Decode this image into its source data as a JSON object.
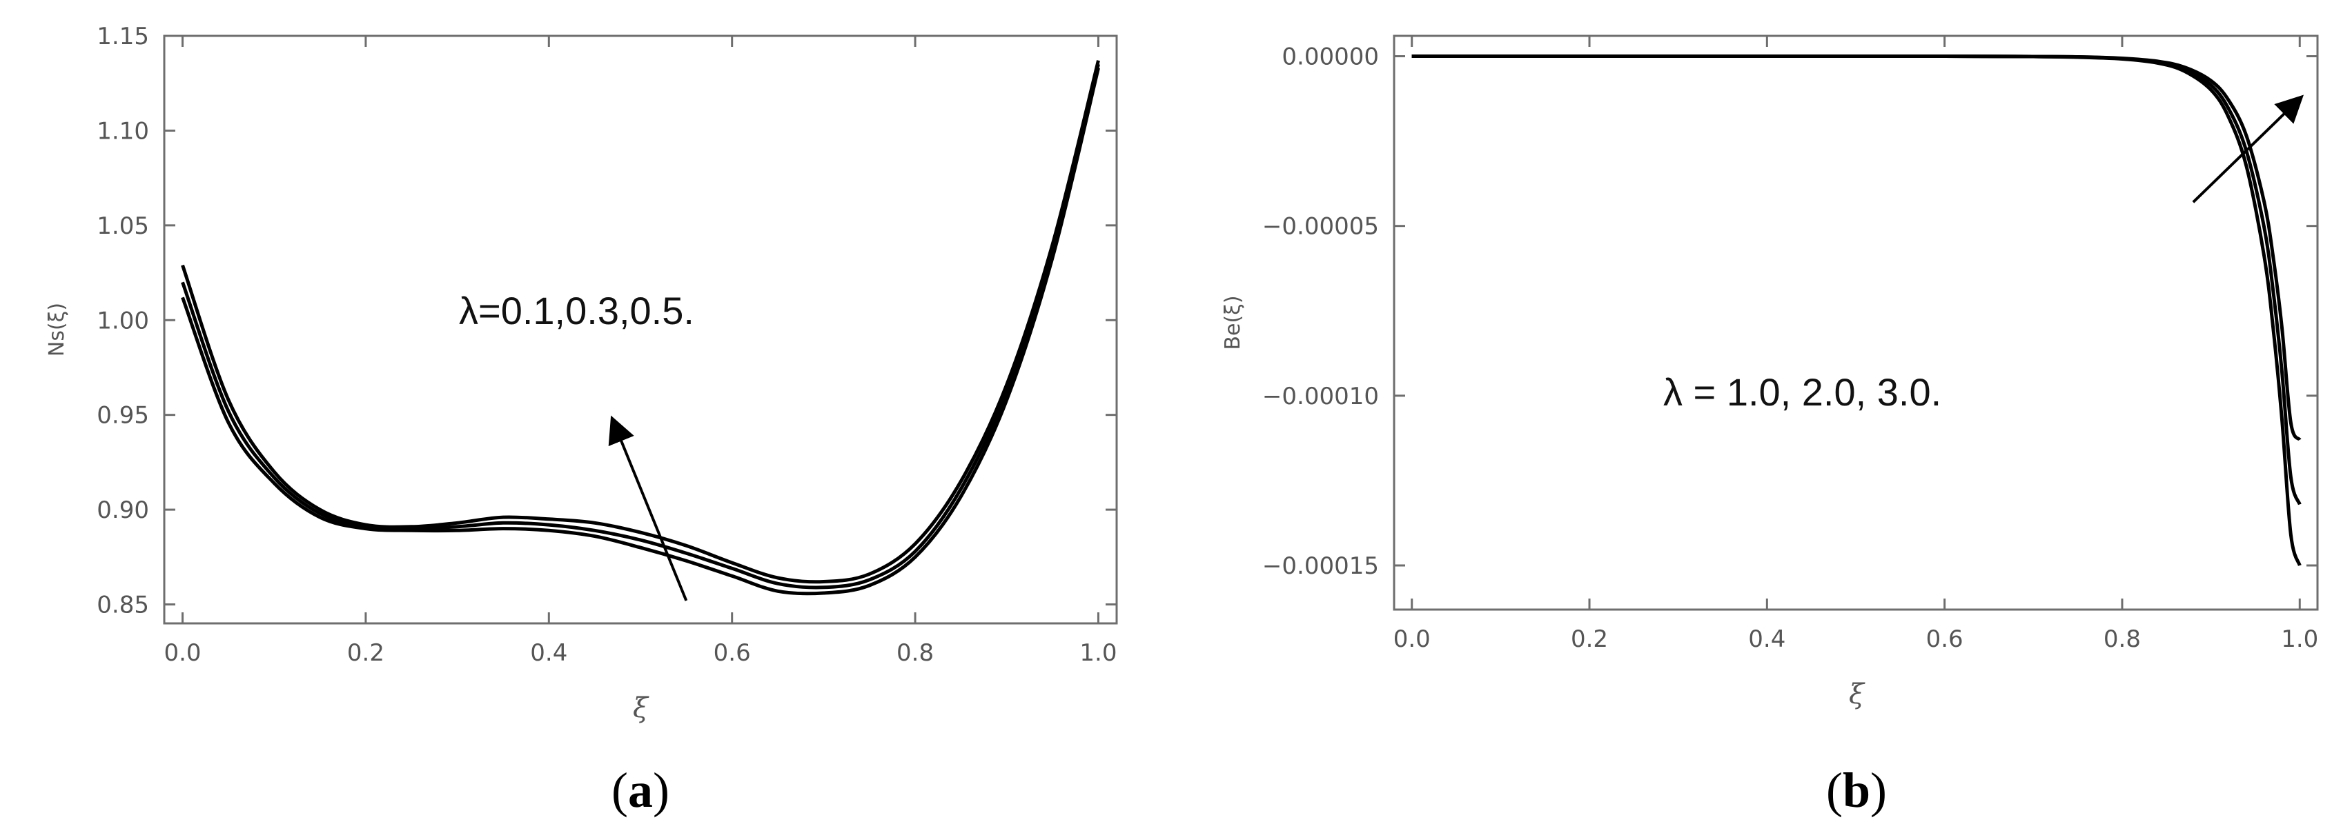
{
  "chart_data": [
    {
      "panel": "(a)",
      "panel_letter": "a",
      "type": "line",
      "xlabel": "ξ",
      "ylabel": "Ns(ξ)",
      "xlim": [
        -0.02,
        1.02
      ],
      "ylim": [
        0.84,
        1.15
      ],
      "xticks": [
        "0.0",
        "0.2",
        "0.4",
        "0.6",
        "0.8",
        "1.0"
      ],
      "xtick_values": [
        0,
        0.2,
        0.4,
        0.6,
        0.8,
        1.0
      ],
      "yticks": [
        "0.85",
        "0.90",
        "0.95",
        "1.00",
        "1.05",
        "1.10",
        "1.15"
      ],
      "ytick_values": [
        0.85,
        0.9,
        0.95,
        1.0,
        1.05,
        1.1,
        1.15
      ],
      "annotation": "λ=0.1,0.3,0.5.",
      "arrow": {
        "from": [
          0.55,
          0.852
        ],
        "to": [
          0.47,
          0.947
        ]
      },
      "x": [
        0.0,
        0.05,
        0.1,
        0.15,
        0.2,
        0.25,
        0.3,
        0.35,
        0.4,
        0.45,
        0.5,
        0.55,
        0.6,
        0.65,
        0.7,
        0.75,
        0.8,
        0.85,
        0.9,
        0.95,
        1.0
      ],
      "series": [
        {
          "values": [
            1.029,
            0.958,
            0.92,
            0.9,
            0.892,
            0.891,
            0.893,
            0.896,
            0.895,
            0.893,
            0.888,
            0.881,
            0.872,
            0.864,
            0.862,
            0.866,
            0.882,
            0.915,
            0.966,
            1.04,
            1.137
          ]
        },
        {
          "values": [
            1.02,
            0.952,
            0.917,
            0.898,
            0.891,
            0.89,
            0.891,
            0.893,
            0.892,
            0.889,
            0.884,
            0.877,
            0.869,
            0.861,
            0.859,
            0.863,
            0.878,
            0.911,
            0.962,
            1.037,
            1.135
          ]
        },
        {
          "values": [
            1.012,
            0.946,
            0.914,
            0.896,
            0.89,
            0.889,
            0.889,
            0.89,
            0.889,
            0.886,
            0.88,
            0.873,
            0.865,
            0.857,
            0.856,
            0.86,
            0.875,
            0.907,
            0.958,
            1.033,
            1.133
          ]
        }
      ]
    },
    {
      "panel": "(b)",
      "panel_letter": "b",
      "type": "line",
      "xlabel": "ξ",
      "ylabel": "Be(ξ)",
      "xlim": [
        -0.02,
        1.02
      ],
      "ylim": [
        -0.000163,
        6e-06
      ],
      "xticks": [
        "0.0",
        "0.2",
        "0.4",
        "0.6",
        "0.8",
        "1.0"
      ],
      "xtick_values": [
        0,
        0.2,
        0.4,
        0.6,
        0.8,
        1.0
      ],
      "yticks": [
        "0.00000",
        "−0.00005",
        "−0.00010",
        "−0.00015"
      ],
      "ytick_values": [
        0,
        -5e-05,
        -0.0001,
        -0.00015
      ],
      "annotation": "λ = 1.0, 2.0, 3.0.",
      "arrow": {
        "from": [
          0.88,
          -4.3e-05
        ],
        "to": [
          1.0,
          -1.25e-05
        ]
      },
      "x": [
        0.0,
        0.2,
        0.4,
        0.6,
        0.7,
        0.75,
        0.8,
        0.84,
        0.87,
        0.9,
        0.92,
        0.94,
        0.96,
        0.97,
        0.98,
        0.99,
        1.0
      ],
      "series": [
        {
          "values": [
            0,
            0,
            0,
            0,
            -1e-07,
            -2e-07,
            -6e-07,
            -1.5e-06,
            -3.2e-06,
            -7.2e-06,
            -1.3e-05,
            -2.35e-05,
            -4.3e-05,
            -5.9e-05,
            -8e-05,
            -0.000108,
            -0.000113
          ]
        },
        {
          "values": [
            0,
            0,
            0,
            0,
            -1e-07,
            -2e-07,
            -7e-07,
            -1.8e-06,
            -3.8e-06,
            -8.5e-06,
            -1.55e-05,
            -2.8e-05,
            -5.05e-05,
            -6.9e-05,
            -9.3e-05,
            -0.000124,
            -0.000132
          ]
        },
        {
          "values": [
            0,
            0,
            0,
            0,
            -1e-07,
            -3e-07,
            -8e-07,
            -2e-06,
            -4.4e-06,
            -9.9e-06,
            -1.8e-05,
            -3.25e-05,
            -5.9e-05,
            -8e-05,
            -0.000107,
            -0.000141,
            -0.00015
          ]
        }
      ]
    }
  ]
}
